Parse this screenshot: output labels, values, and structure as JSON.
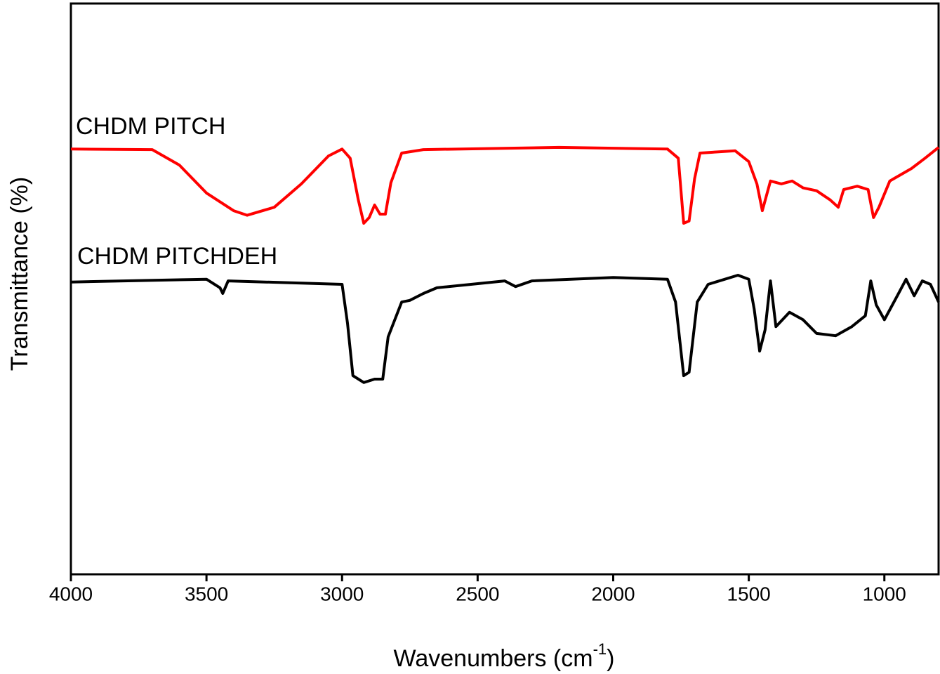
{
  "chart_data": {
    "type": "line",
    "x_label": {
      "text": "Wavenumbers (cm",
      "sup": "-1",
      "end": ")"
    },
    "y_label": "Transmittance (%)",
    "xlim": [
      4000,
      800
    ],
    "xticks": [
      4000,
      3500,
      3000,
      2500,
      2000,
      1500,
      1000
    ],
    "ylim": [
      0,
      100
    ],
    "series": [
      {
        "name": "CHDM PITCH",
        "color": "#ff0000",
        "x": [
          4000,
          3700,
          3600,
          3500,
          3400,
          3350,
          3250,
          3150,
          3050,
          3000,
          2970,
          2940,
          2920,
          2900,
          2880,
          2860,
          2840,
          2820,
          2780,
          2700,
          2200,
          1800,
          1760,
          1740,
          1720,
          1700,
          1680,
          1550,
          1500,
          1470,
          1450,
          1420,
          1380,
          1340,
          1300,
          1250,
          1200,
          1170,
          1150,
          1100,
          1060,
          1040,
          1020,
          980,
          900,
          850,
          800
        ],
        "values": [
          74.5,
          74.4,
          71.7,
          66.8,
          63.7,
          62.9,
          64.3,
          68.4,
          73.3,
          74.5,
          72.9,
          65.6,
          61.5,
          62.5,
          64.7,
          63.1,
          63.1,
          68.6,
          73.8,
          74.4,
          74.8,
          74.5,
          72.9,
          61.5,
          61.9,
          69.3,
          73.8,
          74.2,
          72.3,
          68.4,
          63.7,
          68.9,
          68.4,
          68.9,
          67.7,
          67.2,
          65.6,
          64.3,
          67.4,
          68.0,
          67.4,
          62.5,
          64.3,
          68.9,
          71.1,
          72.9,
          74.8
        ]
      },
      {
        "name": "CHDM PITCHDEH",
        "color": "#000000",
        "x": [
          4000,
          3500,
          3450,
          3440,
          3420,
          3000,
          2980,
          2960,
          2920,
          2880,
          2850,
          2830,
          2780,
          2750,
          2700,
          2650,
          2400,
          2360,
          2300,
          2000,
          1800,
          1770,
          1740,
          1720,
          1690,
          1650,
          1540,
          1500,
          1480,
          1460,
          1440,
          1420,
          1400,
          1350,
          1300,
          1250,
          1180,
          1120,
          1070,
          1050,
          1030,
          1000,
          950,
          920,
          890,
          860,
          830,
          800
        ],
        "values": [
          51.2,
          51.7,
          50.2,
          49.2,
          51.4,
          50.8,
          44.0,
          34.8,
          33.6,
          34.2,
          34.2,
          41.6,
          47.7,
          48.0,
          49.2,
          50.2,
          51.4,
          50.4,
          51.4,
          52.0,
          51.7,
          47.7,
          34.8,
          35.4,
          47.7,
          50.8,
          52.4,
          51.7,
          46.5,
          39.1,
          42.8,
          51.4,
          43.4,
          45.9,
          44.6,
          42.2,
          41.8,
          43.4,
          45.3,
          51.4,
          47.2,
          44.6,
          49.0,
          51.7,
          48.8,
          51.4,
          50.8,
          47.7
        ]
      }
    ]
  }
}
